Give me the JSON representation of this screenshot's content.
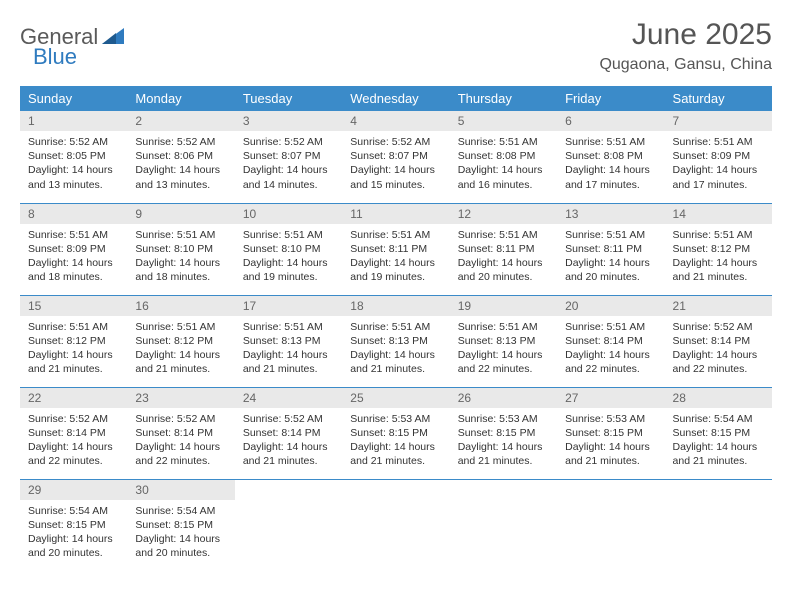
{
  "logo": {
    "text1": "General",
    "text2": "Blue"
  },
  "title": "June 2025",
  "location": "Qugaona, Gansu, China",
  "colors": {
    "header_bg": "#3b8bc9",
    "daynum_bg": "#e9e9e9",
    "border": "#3b8bc9",
    "logo_blue": "#2f7bbf"
  },
  "weekdays": [
    "Sunday",
    "Monday",
    "Tuesday",
    "Wednesday",
    "Thursday",
    "Friday",
    "Saturday"
  ],
  "days": [
    {
      "n": "1",
      "sr": "5:52 AM",
      "ss": "8:05 PM",
      "dl": "14 hours and 13 minutes."
    },
    {
      "n": "2",
      "sr": "5:52 AM",
      "ss": "8:06 PM",
      "dl": "14 hours and 13 minutes."
    },
    {
      "n": "3",
      "sr": "5:52 AM",
      "ss": "8:07 PM",
      "dl": "14 hours and 14 minutes."
    },
    {
      "n": "4",
      "sr": "5:52 AM",
      "ss": "8:07 PM",
      "dl": "14 hours and 15 minutes."
    },
    {
      "n": "5",
      "sr": "5:51 AM",
      "ss": "8:08 PM",
      "dl": "14 hours and 16 minutes."
    },
    {
      "n": "6",
      "sr": "5:51 AM",
      "ss": "8:08 PM",
      "dl": "14 hours and 17 minutes."
    },
    {
      "n": "7",
      "sr": "5:51 AM",
      "ss": "8:09 PM",
      "dl": "14 hours and 17 minutes."
    },
    {
      "n": "8",
      "sr": "5:51 AM",
      "ss": "8:09 PM",
      "dl": "14 hours and 18 minutes."
    },
    {
      "n": "9",
      "sr": "5:51 AM",
      "ss": "8:10 PM",
      "dl": "14 hours and 18 minutes."
    },
    {
      "n": "10",
      "sr": "5:51 AM",
      "ss": "8:10 PM",
      "dl": "14 hours and 19 minutes."
    },
    {
      "n": "11",
      "sr": "5:51 AM",
      "ss": "8:11 PM",
      "dl": "14 hours and 19 minutes."
    },
    {
      "n": "12",
      "sr": "5:51 AM",
      "ss": "8:11 PM",
      "dl": "14 hours and 20 minutes."
    },
    {
      "n": "13",
      "sr": "5:51 AM",
      "ss": "8:11 PM",
      "dl": "14 hours and 20 minutes."
    },
    {
      "n": "14",
      "sr": "5:51 AM",
      "ss": "8:12 PM",
      "dl": "14 hours and 21 minutes."
    },
    {
      "n": "15",
      "sr": "5:51 AM",
      "ss": "8:12 PM",
      "dl": "14 hours and 21 minutes."
    },
    {
      "n": "16",
      "sr": "5:51 AM",
      "ss": "8:12 PM",
      "dl": "14 hours and 21 minutes."
    },
    {
      "n": "17",
      "sr": "5:51 AM",
      "ss": "8:13 PM",
      "dl": "14 hours and 21 minutes."
    },
    {
      "n": "18",
      "sr": "5:51 AM",
      "ss": "8:13 PM",
      "dl": "14 hours and 21 minutes."
    },
    {
      "n": "19",
      "sr": "5:51 AM",
      "ss": "8:13 PM",
      "dl": "14 hours and 22 minutes."
    },
    {
      "n": "20",
      "sr": "5:51 AM",
      "ss": "8:14 PM",
      "dl": "14 hours and 22 minutes."
    },
    {
      "n": "21",
      "sr": "5:52 AM",
      "ss": "8:14 PM",
      "dl": "14 hours and 22 minutes."
    },
    {
      "n": "22",
      "sr": "5:52 AM",
      "ss": "8:14 PM",
      "dl": "14 hours and 22 minutes."
    },
    {
      "n": "23",
      "sr": "5:52 AM",
      "ss": "8:14 PM",
      "dl": "14 hours and 22 minutes."
    },
    {
      "n": "24",
      "sr": "5:52 AM",
      "ss": "8:14 PM",
      "dl": "14 hours and 21 minutes."
    },
    {
      "n": "25",
      "sr": "5:53 AM",
      "ss": "8:15 PM",
      "dl": "14 hours and 21 minutes."
    },
    {
      "n": "26",
      "sr": "5:53 AM",
      "ss": "8:15 PM",
      "dl": "14 hours and 21 minutes."
    },
    {
      "n": "27",
      "sr": "5:53 AM",
      "ss": "8:15 PM",
      "dl": "14 hours and 21 minutes."
    },
    {
      "n": "28",
      "sr": "5:54 AM",
      "ss": "8:15 PM",
      "dl": "14 hours and 21 minutes."
    },
    {
      "n": "29",
      "sr": "5:54 AM",
      "ss": "8:15 PM",
      "dl": "14 hours and 20 minutes."
    },
    {
      "n": "30",
      "sr": "5:54 AM",
      "ss": "8:15 PM",
      "dl": "14 hours and 20 minutes."
    }
  ],
  "labels": {
    "sunrise": "Sunrise:",
    "sunset": "Sunset:",
    "daylight": "Daylight:"
  },
  "layout": {
    "start_weekday": 0,
    "cols": 7
  }
}
